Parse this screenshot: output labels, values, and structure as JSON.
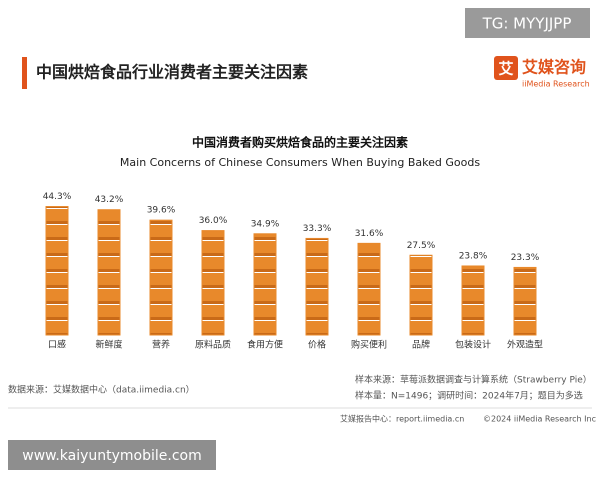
{
  "header": {
    "title": "中国烘焙食品行业消费者主要关注因素",
    "badge": "TG: MYYJJPP",
    "logo_icon": "艾",
    "logo_name": "艾媒咨询",
    "logo_sub": "iiMedia Research"
  },
  "chart_data": {
    "type": "bar",
    "title": "中国消费者购买烘焙食品的主要关注因素",
    "subtitle": "Main Concerns of Chinese Consumers When Buying Baked Goods",
    "categories": [
      "口感",
      "新鲜度",
      "营养",
      "原料品质",
      "食用方便",
      "价格",
      "购买便利",
      "品牌",
      "包装设计",
      "外观造型"
    ],
    "values": [
      44.3,
      43.2,
      39.6,
      36.0,
      34.9,
      33.3,
      31.6,
      27.5,
      23.8,
      23.3
    ],
    "value_labels": [
      "44.3%",
      "43.2%",
      "39.6%",
      "36.0%",
      "34.9%",
      "33.3%",
      "31.6%",
      "27.5%",
      "23.8%",
      "23.3%"
    ],
    "color": "#e8892b"
  },
  "footer": {
    "source": "数据来源：艾媒数据中心（data.iimedia.cn）",
    "sample_source": "样本来源：草莓派数据调查与计算系统（Strawberry Pie）",
    "sample_size": "样本量：N=1496；调研时间：2024年7月；题目为多选",
    "report_center": "艾媒报告中心：report.iimedia.cn",
    "copyright": "©2024 iiMedia Research Inc",
    "watermark": "www.kaiyuntymobile.com"
  }
}
